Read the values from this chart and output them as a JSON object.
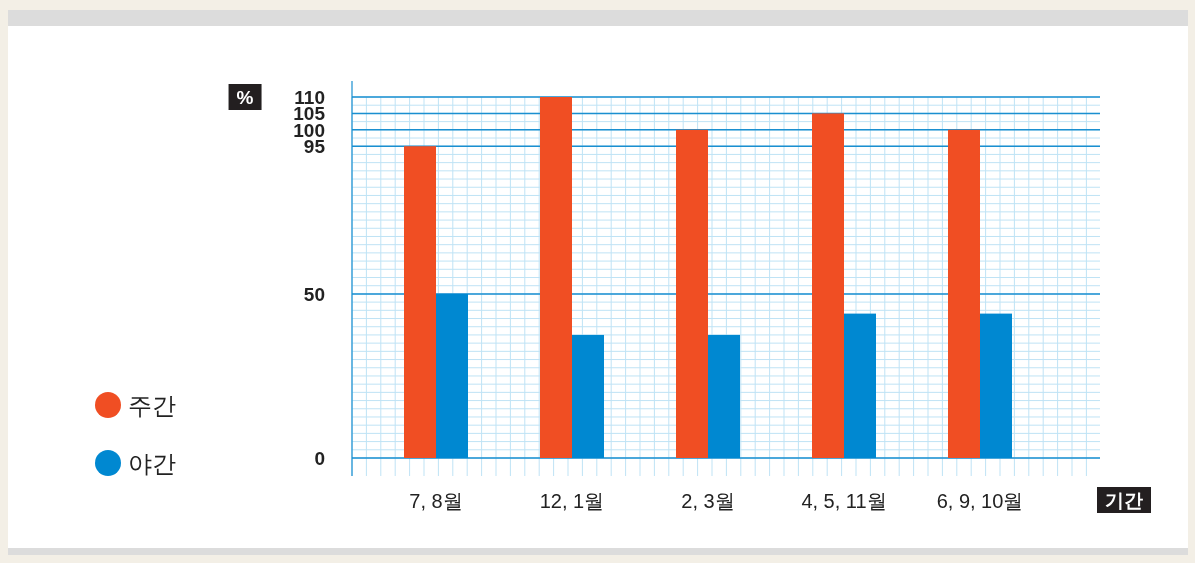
{
  "chart_data": {
    "type": "bar",
    "categories": [
      "7, 8월",
      "12, 1월",
      "2, 3월",
      "4, 5, 11월",
      "6, 9, 10월"
    ],
    "series": [
      {
        "name": "주간",
        "color": "#f04e23",
        "values": [
          95,
          110,
          100,
          105,
          100
        ]
      },
      {
        "name": "야간",
        "color": "#0088d1",
        "values": [
          50,
          37.5,
          37.5,
          44,
          44
        ]
      }
    ],
    "ylabel": "%",
    "xlabel": "기간",
    "ylim": [
      0,
      110
    ],
    "yticks": [
      0,
      50,
      95,
      100,
      105,
      110
    ],
    "grid": true,
    "legend": "left"
  }
}
